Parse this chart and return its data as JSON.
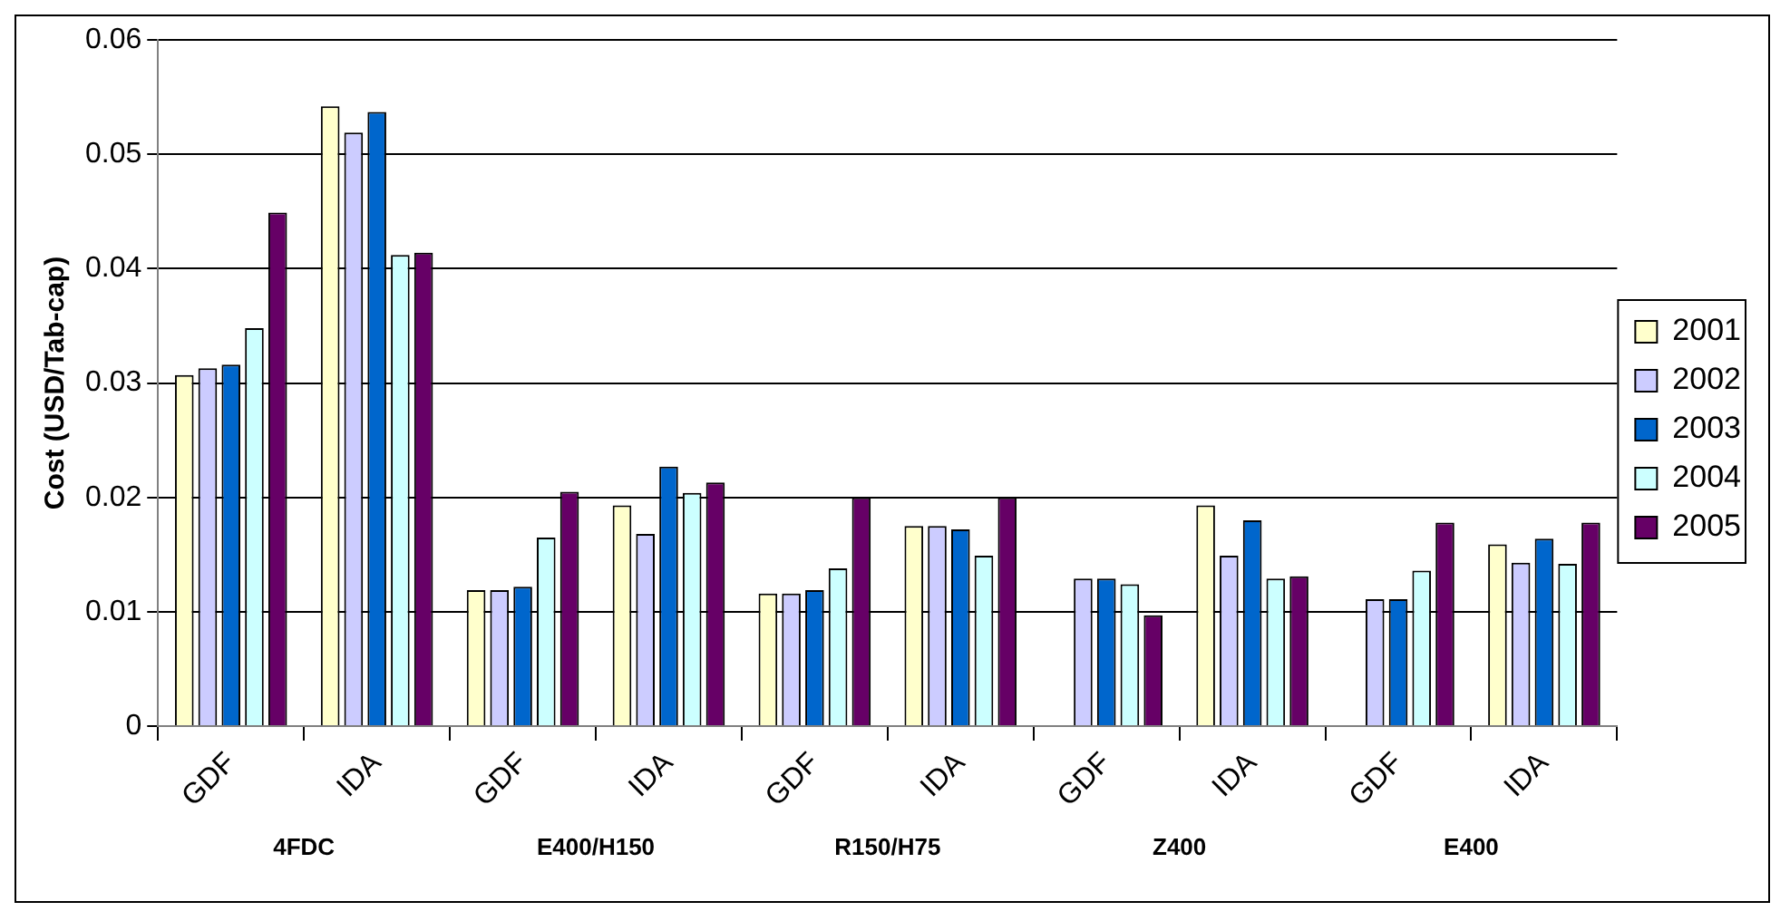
{
  "chart_data": {
    "type": "bar",
    "ylabel": "Cost (USD/Tab-cap)",
    "categories": [
      "GDF",
      "IDA",
      "GDF",
      "IDA",
      "GDF",
      "IDA",
      "GDF",
      "IDA",
      "GDF",
      "IDA"
    ],
    "series": [
      {
        "name": "2001",
        "color": "#ffffcc",
        "values": [
          0.0307,
          0.0542,
          0.0119,
          0.0193,
          0.0116,
          0.0175,
          null,
          0.0193,
          null,
          0.0159
        ]
      },
      {
        "name": "2002",
        "color": "#ccccff",
        "values": [
          0.0313,
          0.0519,
          0.0119,
          0.0168,
          0.0116,
          0.0175,
          0.0129,
          0.0149,
          0.0111,
          0.0143
        ]
      },
      {
        "name": "2003",
        "color": "#0066cc",
        "values": [
          0.0316,
          0.0537,
          0.0122,
          0.0227,
          0.0119,
          0.0172,
          0.0129,
          0.018,
          0.0111,
          0.0164
        ]
      },
      {
        "name": "2004",
        "color": "#ccffff",
        "values": [
          0.0348,
          0.0412,
          0.0165,
          0.0204,
          0.0138,
          0.0149,
          0.0124,
          0.0129,
          0.0136,
          0.0142
        ]
      },
      {
        "name": "2005",
        "color": "#660066",
        "values": [
          0.0449,
          0.0414,
          0.0205,
          0.0213,
          0.02,
          0.02,
          0.0097,
          0.0131,
          0.0178,
          0.0178
        ]
      }
    ],
    "annotations": [
      "4FDC",
      "E400/H150",
      "R150/H75",
      "Z400",
      "E400"
    ],
    "ylim": [
      0,
      0.06
    ],
    "yticks": [
      0,
      0.01,
      0.02,
      0.03,
      0.04,
      0.05,
      0.06
    ],
    "grid": "y",
    "legend": "right"
  }
}
